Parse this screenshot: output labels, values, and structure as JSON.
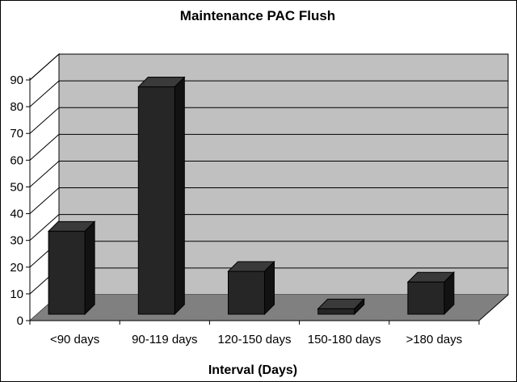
{
  "chart_data": {
    "type": "bar",
    "title": "Maintenance PAC Flush",
    "xlabel": "Interval (Days)",
    "ylabel": "",
    "categories": [
      "<90 days",
      "90-119 days",
      "120-150 days",
      "150-180 days",
      ">180 days"
    ],
    "values": [
      31,
      85,
      16,
      2,
      12
    ],
    "ylim": [
      0,
      90
    ],
    "yticks": [
      "0",
      "10",
      "20",
      "30",
      "40",
      "50",
      "60",
      "70",
      "80",
      "90"
    ],
    "grid": true,
    "legend": "none",
    "style": "3d-column",
    "colors": {
      "bar_front": "#262626",
      "bar_top": "#3a3a3a",
      "bar_side": "#121212",
      "wall": "#c0c0c0",
      "floor": "#808080",
      "gridline": "#000000"
    }
  }
}
